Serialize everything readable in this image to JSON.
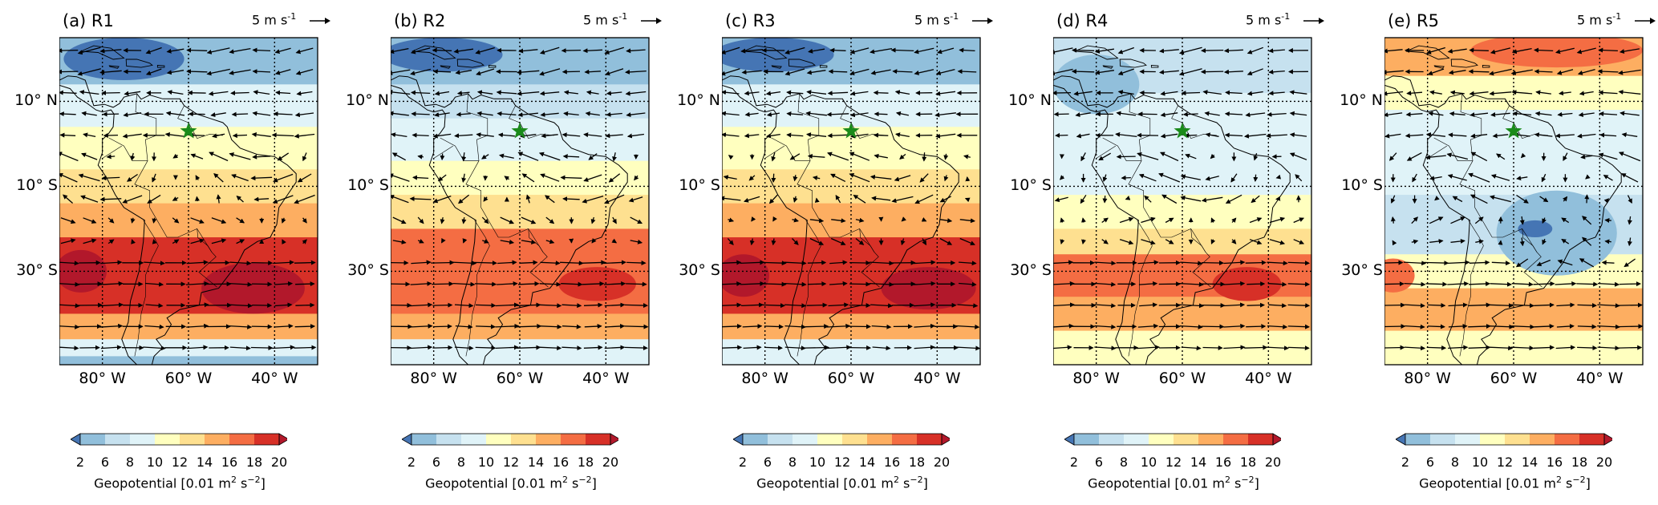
{
  "figure": {
    "lat_labels": [
      "10° N",
      "10° S",
      "30° S"
    ],
    "lon_labels": [
      "80° W",
      "60° W",
      "40° W"
    ],
    "reference_vector": {
      "magnitude": 5,
      "unit_base": "5 m s",
      "unit_exp": "-1"
    },
    "colorbar": {
      "ticks": [
        "2",
        "6",
        "8",
        "10",
        "12",
        "14",
        "16",
        "18",
        "20"
      ],
      "colors": [
        "#4575b4",
        "#91bfdb",
        "#c6e1ef",
        "#e0f3f8",
        "#ffffbf",
        "#fee090",
        "#fdae61",
        "#f46d43",
        "#d73027",
        "#b2182b"
      ],
      "label_main": "Geopotential [0.01 m",
      "label_sup1": "2",
      "label_mid": " s",
      "label_sup2": "−2",
      "label_end": "]"
    },
    "marker": {
      "name": "green-star",
      "lon": -60,
      "lat": 3,
      "color": "#1a8a1a"
    },
    "map_extent": {
      "lon": [
        -90,
        -30
      ],
      "lat": [
        -52,
        25
      ]
    }
  },
  "panels": [
    {
      "title": "(a) R1",
      "pattern": "r1"
    },
    {
      "title": "(b) R2",
      "pattern": "r2"
    },
    {
      "title": "(c) R3",
      "pattern": "r3"
    },
    {
      "title": "(d) R4",
      "pattern": "r4"
    },
    {
      "title": "(e) R5",
      "pattern": "r5"
    }
  ]
}
